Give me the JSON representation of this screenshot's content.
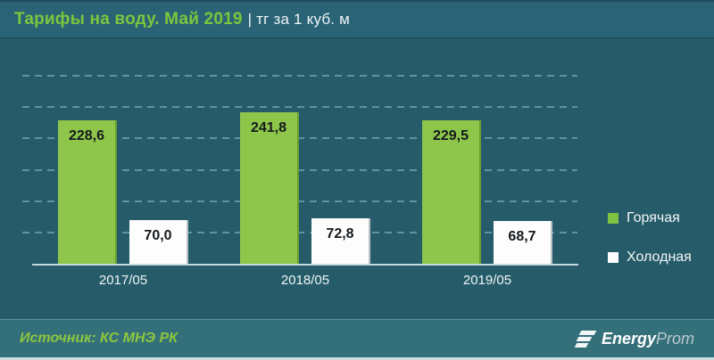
{
  "header": {
    "title_main": "Тарифы на воду. Май 2019",
    "title_units": "| тг за 1 куб. м"
  },
  "chart_data": {
    "type": "bar",
    "title": "Тарифы на воду. Май 2019 | тг за 1 куб. м",
    "categories": [
      "2017/05",
      "2018/05",
      "2019/05"
    ],
    "series": [
      {
        "name": "Горячая",
        "color": "#8dc64a",
        "values": [
          228.6,
          241.8,
          229.5
        ],
        "labels": [
          "228,6",
          "241,8",
          "229,5"
        ]
      },
      {
        "name": "Холодная",
        "color": "#ffffff",
        "values": [
          70.0,
          72.8,
          68.7
        ],
        "labels": [
          "70,0",
          "72,8",
          "68,7"
        ]
      }
    ],
    "xlabel": "",
    "ylabel": "",
    "ylim": [
      0,
      300
    ],
    "gridline_step": 50,
    "grid": "dashed-horizontal",
    "legend_position": "right",
    "value_label_position": "inside-top"
  },
  "footer": {
    "source": "Источник: КС МНЭ РК",
    "logo_energy": "Energy",
    "logo_prom": "Prom"
  },
  "colors": {
    "header_bg": "#2a6375",
    "body_bg": "#265c69",
    "footer_bg": "#34707a",
    "hot_bar": "#8dc64a",
    "cold_bar": "#ffffff",
    "title_green": "#7cc63e",
    "text_white": "#eef5f6"
  }
}
